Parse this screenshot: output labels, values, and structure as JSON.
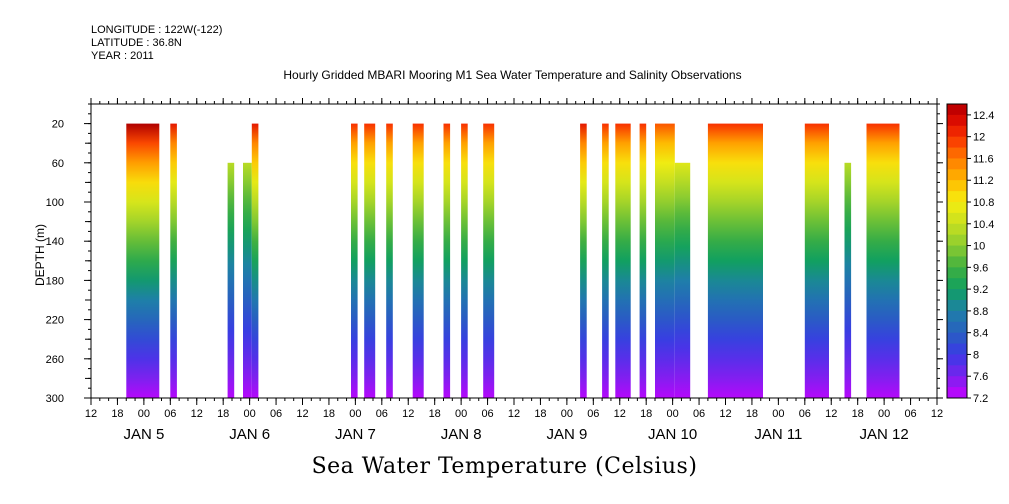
{
  "header": {
    "longitude": "LONGITUDE : 122W(-122)",
    "latitude": "LATITUDE : 36.8N",
    "year": "YEAR : 2011"
  },
  "chart_data": {
    "type": "heatmap",
    "title": "Hourly Gridded MBARI Mooring M1 Sea Water Temperature and Salinity Observations",
    "xlabel": "",
    "ylabel": "DEPTH (m)",
    "colorbar_label": "Sea Water Temperature (Celsius)",
    "x_hour_ticks": [
      "12",
      "18",
      "00",
      "06",
      "12",
      "18",
      "00",
      "06",
      "12",
      "18",
      "00",
      "06",
      "12",
      "18",
      "00",
      "06",
      "12",
      "18",
      "00",
      "06",
      "12",
      "18",
      "00",
      "06",
      "12",
      "18",
      "00",
      "06",
      "12",
      "18",
      "00",
      "06",
      "12"
    ],
    "x_day_labels": [
      {
        "label": "JAN  5",
        "hour": 24
      },
      {
        "label": "JAN  6",
        "hour": 48
      },
      {
        "label": "JAN  7",
        "hour": 72
      },
      {
        "label": "JAN  8",
        "hour": 96
      },
      {
        "label": "JAN  9",
        "hour": 120
      },
      {
        "label": "JAN 10",
        "hour": 144
      },
      {
        "label": "JAN 11",
        "hour": 168
      },
      {
        "label": "JAN 12",
        "hour": 192
      }
    ],
    "xlim_hours": [
      12,
      204
    ],
    "y_ticks": [
      20,
      60,
      100,
      140,
      180,
      220,
      260,
      300
    ],
    "ylim": [
      300,
      0
    ],
    "colorbar_ticks": [
      "12.4",
      "12",
      "11.6",
      "11.2",
      "10.8",
      "10.4",
      "10",
      "9.6",
      "9.2",
      "8.8",
      "8.4",
      "8",
      "7.6",
      "7.2"
    ],
    "color_range": [
      7.2,
      12.6
    ],
    "data_blocks": [
      {
        "start": 20,
        "end": 27.5,
        "top": 20,
        "surf": 12.6
      },
      {
        "start": 30,
        "end": 31.5,
        "top": 20,
        "surf": 12.2
      },
      {
        "start": 43,
        "end": 44.5,
        "top": 60,
        "surf": 11.2
      },
      {
        "start": 46.5,
        "end": 48.5,
        "top": 60,
        "surf": 11.2
      },
      {
        "start": 48.5,
        "end": 50,
        "top": 20,
        "surf": 12.2
      },
      {
        "start": 71,
        "end": 72.5,
        "top": 20,
        "surf": 12.0
      },
      {
        "start": 74,
        "end": 76.5,
        "top": 20,
        "surf": 12.0
      },
      {
        "start": 79,
        "end": 80.5,
        "top": 20,
        "surf": 12.0
      },
      {
        "start": 85,
        "end": 87.5,
        "top": 20,
        "surf": 12.0
      },
      {
        "start": 92,
        "end": 93.5,
        "top": 20,
        "surf": 12.0
      },
      {
        "start": 96,
        "end": 97.5,
        "top": 20,
        "surf": 12.0
      },
      {
        "start": 101,
        "end": 103.5,
        "top": 20,
        "surf": 12.0
      },
      {
        "start": 123,
        "end": 124.5,
        "top": 20,
        "surf": 12.2
      },
      {
        "start": 128,
        "end": 129.5,
        "top": 20,
        "surf": 12.0
      },
      {
        "start": 131,
        "end": 134.5,
        "top": 20,
        "surf": 12.0
      },
      {
        "start": 136.5,
        "end": 138,
        "top": 20,
        "surf": 12.0
      },
      {
        "start": 140,
        "end": 144.5,
        "top": 20,
        "surf": 11.8
      },
      {
        "start": 144.5,
        "end": 148,
        "top": 60,
        "surf": 11.6
      },
      {
        "start": 152,
        "end": 164.5,
        "top": 20,
        "surf": 12.0
      },
      {
        "start": 174,
        "end": 179.5,
        "top": 20,
        "surf": 12.0
      },
      {
        "start": 183,
        "end": 184.5,
        "top": 60,
        "surf": 11.2
      },
      {
        "start": 188,
        "end": 195.5,
        "top": 20,
        "surf": 12.0
      }
    ],
    "grid": false
  }
}
